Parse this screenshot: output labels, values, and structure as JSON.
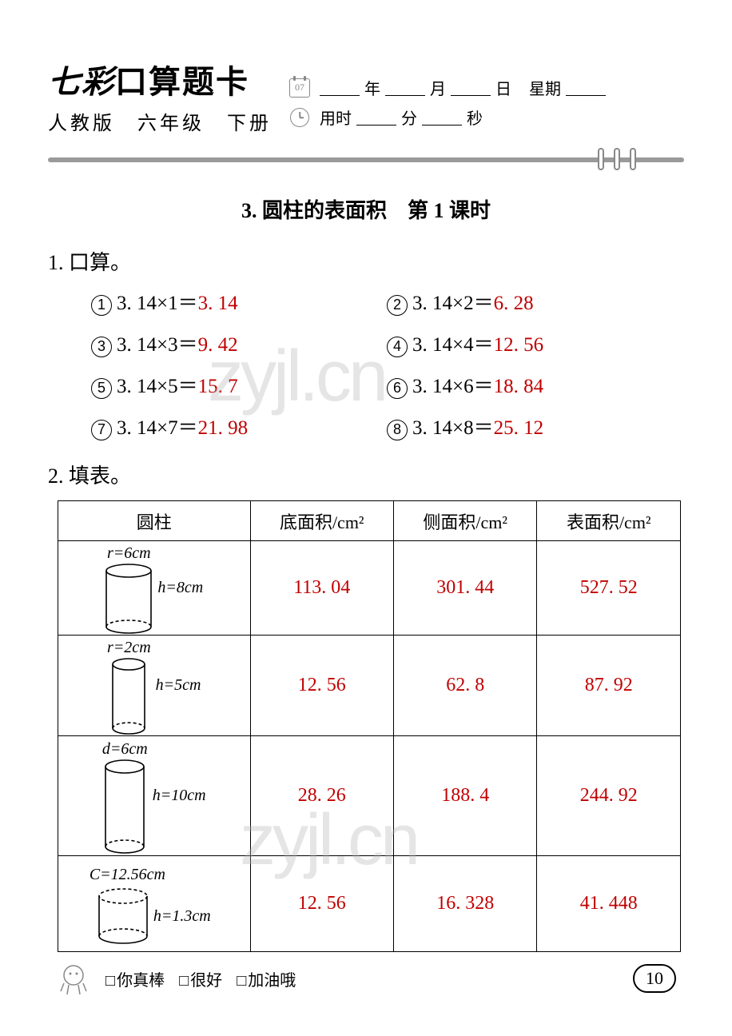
{
  "header": {
    "title_prefix": "七彩",
    "title_rest": "口算题卡",
    "subtitle": "人教版　六年级　下册",
    "calendar_text": "07",
    "year_label": "年",
    "month_label": "月",
    "day_label": "日",
    "weekday_label": "星期",
    "time_label": "用时",
    "minute_label": "分",
    "second_label": "秒"
  },
  "section_title": "3. 圆柱的表面积　第 1 课时",
  "q1": {
    "label": "1. 口算。",
    "items": [
      {
        "n": "1",
        "expr": "3. 14×1＝",
        "ans": "3. 14"
      },
      {
        "n": "2",
        "expr": "3. 14×2＝",
        "ans": "6. 28"
      },
      {
        "n": "3",
        "expr": "3. 14×3＝",
        "ans": "9. 42"
      },
      {
        "n": "4",
        "expr": "3. 14×4＝",
        "ans": "12. 56"
      },
      {
        "n": "5",
        "expr": "3. 14×5＝",
        "ans": "15. 7"
      },
      {
        "n": "6",
        "expr": "3. 14×6＝",
        "ans": "18. 84"
      },
      {
        "n": "7",
        "expr": "3. 14×7＝",
        "ans": "21. 98"
      },
      {
        "n": "8",
        "expr": "3. 14×8＝",
        "ans": "25. 12"
      }
    ]
  },
  "q2": {
    "label": "2. 填表。",
    "columns": [
      "圆柱",
      "底面积/cm²",
      "侧面积/cm²",
      "表面积/cm²"
    ],
    "rows": [
      {
        "shape_svg_h": 70,
        "shape_rx": 28,
        "shape_ry": 8,
        "param1": "r=6cm",
        "param2": "h=8cm",
        "base": "113. 04",
        "lateral": "301. 44",
        "surface": "527. 52",
        "extra_class": "short"
      },
      {
        "shape_svg_h": 80,
        "shape_rx": 20,
        "shape_ry": 7,
        "param1": "r=2cm",
        "param2": "h=5cm",
        "base": "12. 56",
        "lateral": "62. 8",
        "surface": "87. 92",
        "extra_class": ""
      },
      {
        "shape_svg_h": 100,
        "shape_rx": 24,
        "shape_ry": 8,
        "param1": "d=6cm",
        "param2": "h=10cm",
        "base": "28. 26",
        "lateral": "188. 4",
        "surface": "244. 92",
        "extra_class": "tall"
      },
      {
        "shape_svg_h": 50,
        "shape_rx": 30,
        "shape_ry": 9,
        "param1": "C=12.56cm",
        "param2": "h=1.3cm",
        "base": "12. 56",
        "lateral": "16. 328",
        "surface": "41. 448",
        "extra_class": ""
      }
    ]
  },
  "watermark": "zyjl.cn",
  "footer": {
    "items": [
      "你真棒",
      "很好",
      "加油哦"
    ],
    "page": "10"
  },
  "colors": {
    "answer": "#c00000",
    "divider": "#9a9a9a",
    "watermark": "rgba(180,180,180,0.35)"
  }
}
